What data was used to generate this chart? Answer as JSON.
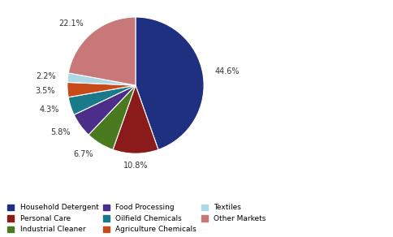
{
  "labels": [
    "Household Detergent",
    "Personal Care",
    "Industrial Cleaner",
    "Food Processing",
    "Oilfield Chemicals",
    "Agriculture Chemicals",
    "Textiles",
    "Other Markets"
  ],
  "values": [
    44.6,
    10.8,
    6.7,
    5.8,
    4.3,
    3.5,
    2.2,
    22.1
  ],
  "colors": [
    "#1f3080",
    "#8b1a1a",
    "#4a7a20",
    "#4b2d8a",
    "#1a7a8a",
    "#c84a1a",
    "#add8e6",
    "#c87878"
  ],
  "pct_labels": [
    "44.6%",
    "10.8%",
    "6.7%",
    "5.8%",
    "4.3%",
    "3.5%",
    "2.2%",
    "22.1%"
  ],
  "legend_labels": [
    "Household Detergent",
    "Personal Care",
    "Industrial Cleaner",
    "Food Processing",
    "Oilfield Chemicals",
    "Agriculture Chemicals",
    "Textiles",
    "Other Markets"
  ],
  "figsize": [
    4.84,
    2.92
  ],
  "dpi": 100,
  "startangle": 90
}
